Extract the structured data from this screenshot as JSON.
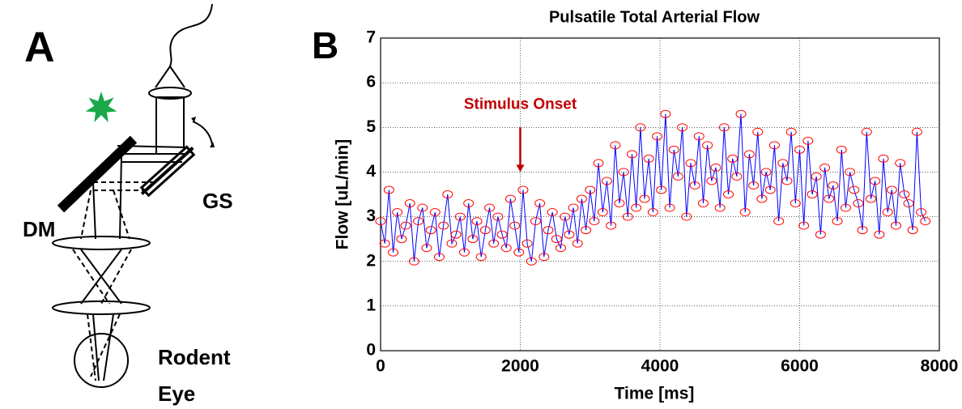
{
  "panel_a": {
    "label": "A",
    "mirror_label": "DM",
    "scanner_label": "GS",
    "eye_label": [
      "Rodent",
      "Eye"
    ]
  },
  "panel_b": {
    "label": "B"
  },
  "chart_data": {
    "type": "line",
    "title": "Pulsatile Total Arterial Flow",
    "x_label": "Time [ms]",
    "y_label": "Flow [uL/min]",
    "xlim": [
      0,
      8000
    ],
    "ylim": [
      0,
      7
    ],
    "xticks": [
      0,
      2000,
      4000,
      6000,
      8000
    ],
    "yticks": [
      0,
      1,
      2,
      3,
      4,
      5,
      6,
      7
    ],
    "grid": true,
    "line_color": "#0000ff",
    "marker_color": "#ff0000",
    "annotation": {
      "text": "Stimulus Onset",
      "x": 2000,
      "y": 5.5,
      "arrow_from": 5.0,
      "arrow_to": 4.0,
      "color": "#c00000"
    },
    "x": [
      0,
      60,
      120,
      180,
      240,
      300,
      360,
      420,
      480,
      540,
      600,
      660,
      720,
      780,
      840,
      900,
      960,
      1020,
      1080,
      1140,
      1200,
      1260,
      1320,
      1380,
      1440,
      1500,
      1560,
      1620,
      1680,
      1740,
      1800,
      1860,
      1920,
      1980,
      2040,
      2100,
      2160,
      2220,
      2280,
      2340,
      2400,
      2460,
      2520,
      2580,
      2640,
      2700,
      2760,
      2820,
      2880,
      2940,
      3000,
      3060,
      3120,
      3180,
      3240,
      3300,
      3360,
      3420,
      3480,
      3540,
      3600,
      3660,
      3720,
      3780,
      3840,
      3900,
      3960,
      4020,
      4080,
      4140,
      4200,
      4260,
      4320,
      4380,
      4440,
      4500,
      4560,
      4620,
      4680,
      4740,
      4800,
      4860,
      4920,
      4980,
      5040,
      5100,
      5160,
      5220,
      5280,
      5340,
      5400,
      5460,
      5520,
      5580,
      5640,
      5700,
      5760,
      5820,
      5880,
      5940,
      6000,
      6060,
      6120,
      6180,
      6240,
      6300,
      6360,
      6420,
      6480,
      6540,
      6600,
      6660,
      6720,
      6780,
      6840,
      6900,
      6960,
      7020,
      7080,
      7140,
      7200,
      7260,
      7320,
      7380,
      7440,
      7500,
      7560,
      7620,
      7680,
      7740,
      7800
    ],
    "values": [
      2.9,
      2.4,
      3.6,
      2.2,
      3.1,
      2.5,
      2.8,
      3.3,
      2.0,
      2.9,
      3.2,
      2.3,
      2.7,
      3.1,
      2.1,
      2.8,
      3.5,
      2.4,
      2.6,
      3.0,
      2.2,
      3.3,
      2.5,
      2.9,
      2.1,
      2.7,
      3.2,
      2.4,
      3.0,
      2.6,
      2.3,
      3.4,
      2.8,
      2.2,
      3.6,
      2.4,
      2.0,
      2.9,
      3.3,
      2.1,
      2.7,
      3.1,
      2.5,
      2.3,
      3.0,
      2.6,
      3.2,
      2.4,
      3.4,
      2.7,
      3.6,
      2.9,
      4.2,
      3.1,
      3.8,
      2.8,
      4.6,
      3.3,
      4.0,
      3.0,
      4.4,
      3.2,
      5.0,
      3.4,
      4.3,
      3.1,
      4.8,
      3.6,
      5.3,
      3.2,
      4.5,
      3.9,
      5.0,
      3.0,
      4.2,
      3.7,
      4.8,
      3.3,
      4.6,
      3.8,
      4.1,
      3.2,
      5.0,
      3.5,
      4.3,
      3.9,
      5.3,
      3.1,
      4.4,
      3.7,
      4.9,
      3.4,
      4.0,
      3.6,
      4.6,
      2.9,
      4.2,
      3.8,
      4.9,
      3.3,
      4.5,
      2.8,
      4.7,
      3.5,
      3.9,
      2.6,
      4.1,
      3.4,
      3.7,
      2.9,
      4.5,
      3.2,
      4.0,
      3.6,
      3.3,
      2.7,
      4.9,
      3.4,
      3.8,
      2.6,
      4.3,
      3.1,
      3.6,
      2.8,
      4.2,
      3.5,
      3.3,
      2.7,
      4.9,
      3.1,
      2.9
    ]
  }
}
